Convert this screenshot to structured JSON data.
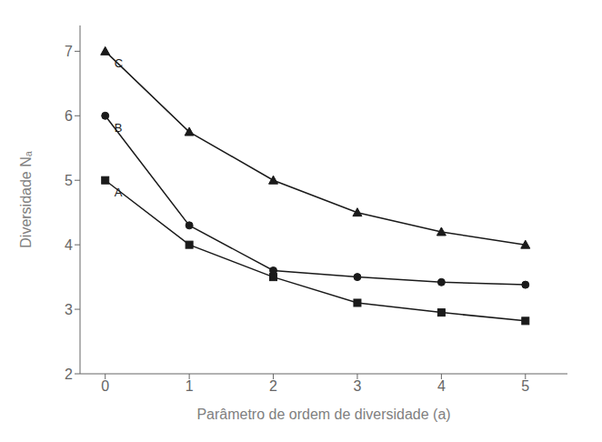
{
  "chart_data": {
    "type": "line",
    "xlabel": "Parâmetro de ordem de diversidade (a)",
    "ylabel": "Diversidade Nₐ",
    "x": [
      0,
      1,
      2,
      3,
      4,
      5
    ],
    "series": [
      {
        "name": "A",
        "color": "#1a1a1a",
        "marker": "square",
        "values": [
          5.0,
          4.0,
          3.5,
          3.1,
          2.95,
          2.82
        ]
      },
      {
        "name": "B",
        "color": "#1a1a1a",
        "marker": "circle",
        "values": [
          6.0,
          4.3,
          3.6,
          3.5,
          3.42,
          3.38
        ]
      },
      {
        "name": "C",
        "color": "#1a1a1a",
        "marker": "triangle",
        "values": [
          7.0,
          5.75,
          5.0,
          4.5,
          4.2,
          4.0
        ]
      }
    ],
    "xlim": [
      -0.3,
      5.5
    ],
    "xticks": [
      0,
      1,
      2,
      3,
      4,
      5
    ],
    "ylim": [
      2.0,
      7.4
    ],
    "yticks": [
      2,
      3,
      4,
      5,
      6,
      7
    ],
    "grid": false
  }
}
